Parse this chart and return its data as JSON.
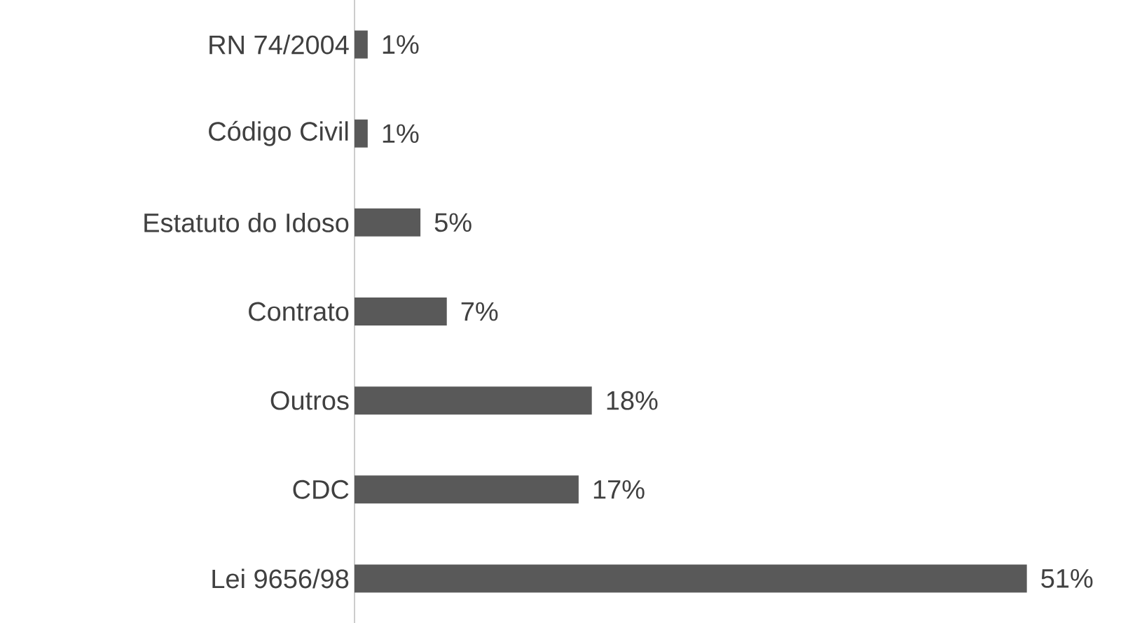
{
  "chart_data": {
    "type": "bar",
    "orientation": "horizontal",
    "categories": [
      "RN 74/2004",
      "Código Civil",
      "Estatuto do Idoso",
      "Contrato",
      "Outros",
      "CDC",
      "Lei 9656/98"
    ],
    "values": [
      1,
      1,
      5,
      7,
      18,
      17,
      51
    ],
    "value_labels": [
      "1%",
      "1%",
      "5%",
      "7%",
      "18%",
      "17%",
      "51%"
    ],
    "color": "#595959"
  }
}
